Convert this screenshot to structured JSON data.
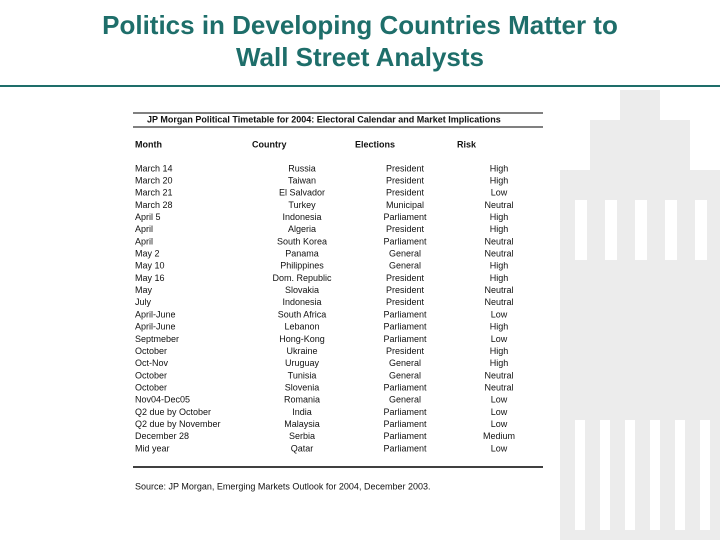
{
  "header": {
    "title_lines": [
      "Politics in Developing Countries Matter to",
      "Wall Street Analysts"
    ]
  },
  "table": {
    "title": "JP Morgan Political Timetable for 2004: Electoral Calendar and Market Implications",
    "columns": [
      "Month",
      "Country",
      "Elections",
      "Risk"
    ],
    "rows": [
      [
        "March 14",
        "Russia",
        "President",
        "High"
      ],
      [
        "March 20",
        "Taiwan",
        "President",
        "High"
      ],
      [
        "March 21",
        "El Salvador",
        "President",
        "Low"
      ],
      [
        "March 28",
        "Turkey",
        "Municipal",
        "Neutral"
      ],
      [
        "April 5",
        "Indonesia",
        "Parliament",
        "High"
      ],
      [
        "April",
        "Algeria",
        "President",
        "High"
      ],
      [
        "April",
        "South Korea",
        "Parliament",
        "Neutral"
      ],
      [
        "May 2",
        "Panama",
        "General",
        "Neutral"
      ],
      [
        "May 10",
        "Philippines",
        "General",
        "High"
      ],
      [
        "May 16",
        "Dom. Republic",
        "President",
        "High"
      ],
      [
        "May",
        "Slovakia",
        "President",
        "Neutral"
      ],
      [
        "July",
        "Indonesia",
        "President",
        "Neutral"
      ],
      [
        "April-June",
        "South Africa",
        "Parliament",
        "Low"
      ],
      [
        "April-June",
        "Lebanon",
        "Parliament",
        "High"
      ],
      [
        "Septmeber",
        "Hong-Kong",
        "Parliament",
        "Low"
      ],
      [
        "October",
        "Ukraine",
        "President",
        "High"
      ],
      [
        "Oct-Nov",
        "Uruguay",
        "General",
        "High"
      ],
      [
        "October",
        "Tunisia",
        "General",
        "Neutral"
      ],
      [
        "October",
        "Slovenia",
        "Parliament",
        "Neutral"
      ],
      [
        "Nov04-Dec05",
        "Romania",
        "General",
        "Low"
      ],
      [
        "Q2 due by October",
        "India",
        "Parliament",
        "Low"
      ],
      [
        "Q2 due by November",
        "Malaysia",
        "Parliament",
        "Low"
      ],
      [
        "December 28",
        "Serbia",
        "Parliament",
        "Medium"
      ],
      [
        "Mid year",
        "Qatar",
        "Parliament",
        "Low"
      ]
    ],
    "source": "Source: JP Morgan, Emerging Markets Outlook for 2004, December 2003."
  }
}
